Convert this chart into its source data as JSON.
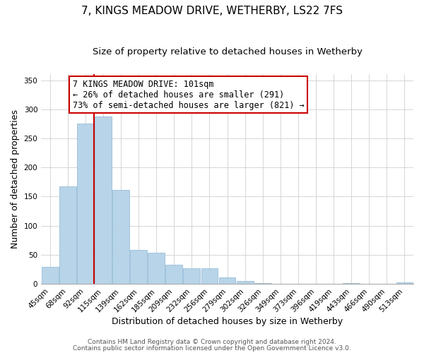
{
  "title": "7, KINGS MEADOW DRIVE, WETHERBY, LS22 7FS",
  "subtitle": "Size of property relative to detached houses in Wetherby",
  "xlabel": "Distribution of detached houses by size in Wetherby",
  "ylabel": "Number of detached properties",
  "bar_labels": [
    "45sqm",
    "68sqm",
    "92sqm",
    "115sqm",
    "139sqm",
    "162sqm",
    "185sqm",
    "209sqm",
    "232sqm",
    "256sqm",
    "279sqm",
    "302sqm",
    "326sqm",
    "349sqm",
    "373sqm",
    "396sqm",
    "419sqm",
    "443sqm",
    "466sqm",
    "490sqm",
    "513sqm"
  ],
  "bar_values": [
    29,
    168,
    275,
    288,
    162,
    59,
    54,
    33,
    27,
    27,
    11,
    5,
    1,
    0,
    0,
    0,
    0,
    1,
    0,
    0,
    3
  ],
  "bar_color": "#b8d4e8",
  "vline_color": "#cc0000",
  "annotation_line1": "7 KINGS MEADOW DRIVE: 101sqm",
  "annotation_line2": "← 26% of detached houses are smaller (291)",
  "annotation_line3": "73% of semi-detached houses are larger (821) →",
  "ylim": [
    0,
    360
  ],
  "yticks": [
    0,
    50,
    100,
    150,
    200,
    250,
    300,
    350
  ],
  "footer_line1": "Contains HM Land Registry data © Crown copyright and database right 2024.",
  "footer_line2": "Contains public sector information licensed under the Open Government Licence v3.0.",
  "title_fontsize": 11,
  "subtitle_fontsize": 9.5,
  "axis_label_fontsize": 9,
  "tick_fontsize": 7.5,
  "annotation_fontsize": 8.5,
  "footer_fontsize": 6.5,
  "vline_index": 2
}
